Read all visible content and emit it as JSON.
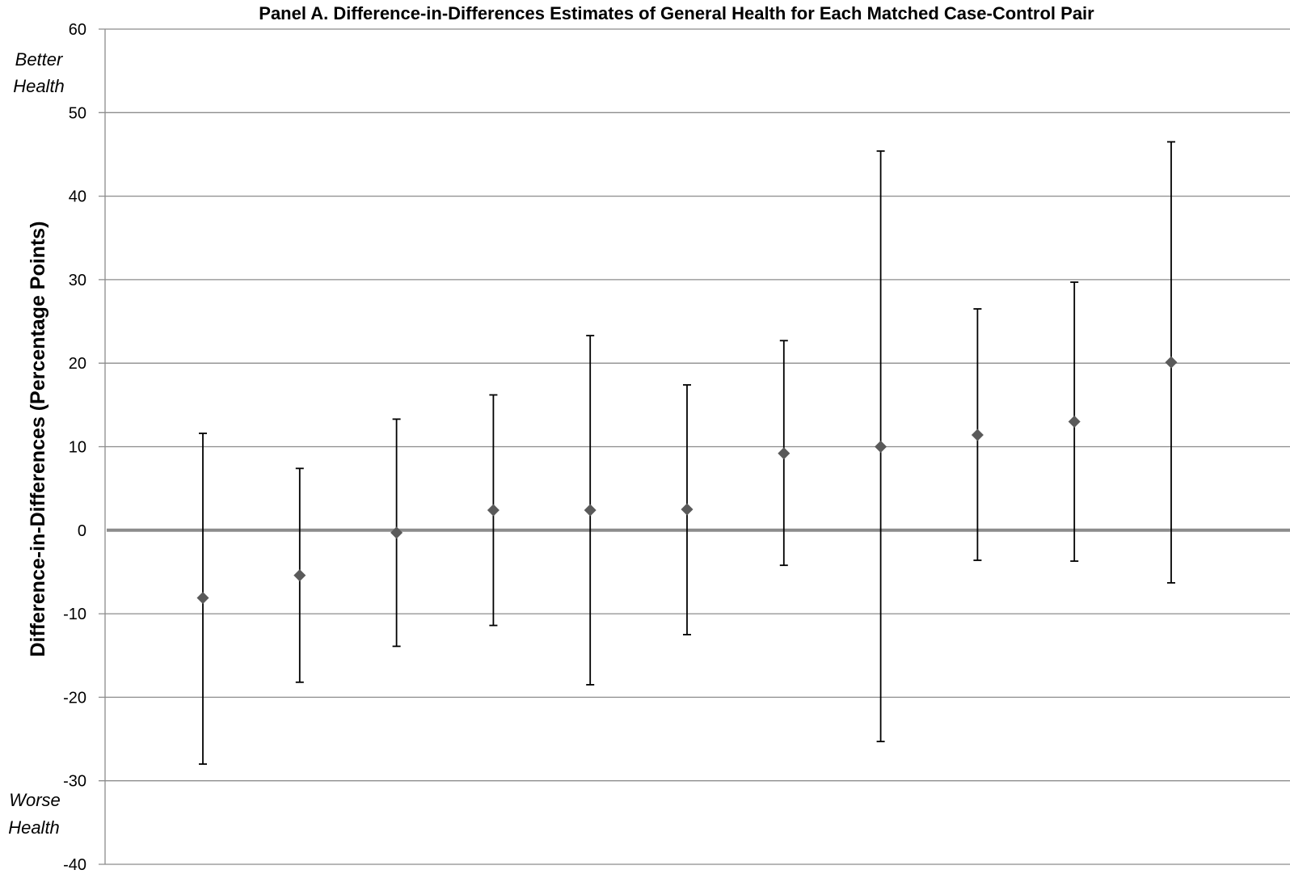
{
  "chart_data": {
    "type": "scatter",
    "title": "Panel A. Difference-in-Differences Estimates of General Health for Each Matched Case-Control Pair",
    "ylabel": "Difference-in-Differences (Percentage Points)",
    "xlabel": "",
    "ylim": [
      -40,
      60
    ],
    "yticks": [
      60,
      50,
      40,
      30,
      20,
      10,
      0,
      -10,
      -20,
      -30,
      -40
    ],
    "grid": true,
    "annotations": {
      "top_line1": "Better",
      "top_line2": "Health",
      "bottom_line1": "Worse",
      "bottom_line2": "Health"
    },
    "colors": {
      "marker": "#5a5a5a",
      "grid": "#8c8c8c",
      "errorbar": "#000000"
    },
    "points": [
      {
        "estimate": -8.1,
        "low": -28.0,
        "high": 11.6
      },
      {
        "estimate": -5.4,
        "low": -18.2,
        "high": 7.4
      },
      {
        "estimate": -0.3,
        "low": -13.9,
        "high": 13.3
      },
      {
        "estimate": 2.4,
        "low": -11.4,
        "high": 16.2
      },
      {
        "estimate": 2.4,
        "low": -18.5,
        "high": 23.3
      },
      {
        "estimate": 2.5,
        "low": -12.5,
        "high": 17.4
      },
      {
        "estimate": 9.2,
        "low": -4.2,
        "high": 22.7
      },
      {
        "estimate": 10.0,
        "low": -25.3,
        "high": 45.4
      },
      {
        "estimate": 11.4,
        "low": -3.6,
        "high": 26.5
      },
      {
        "estimate": 13.0,
        "low": -3.7,
        "high": 29.7
      },
      {
        "estimate": 20.1,
        "low": -6.3,
        "high": 46.5
      }
    ]
  }
}
